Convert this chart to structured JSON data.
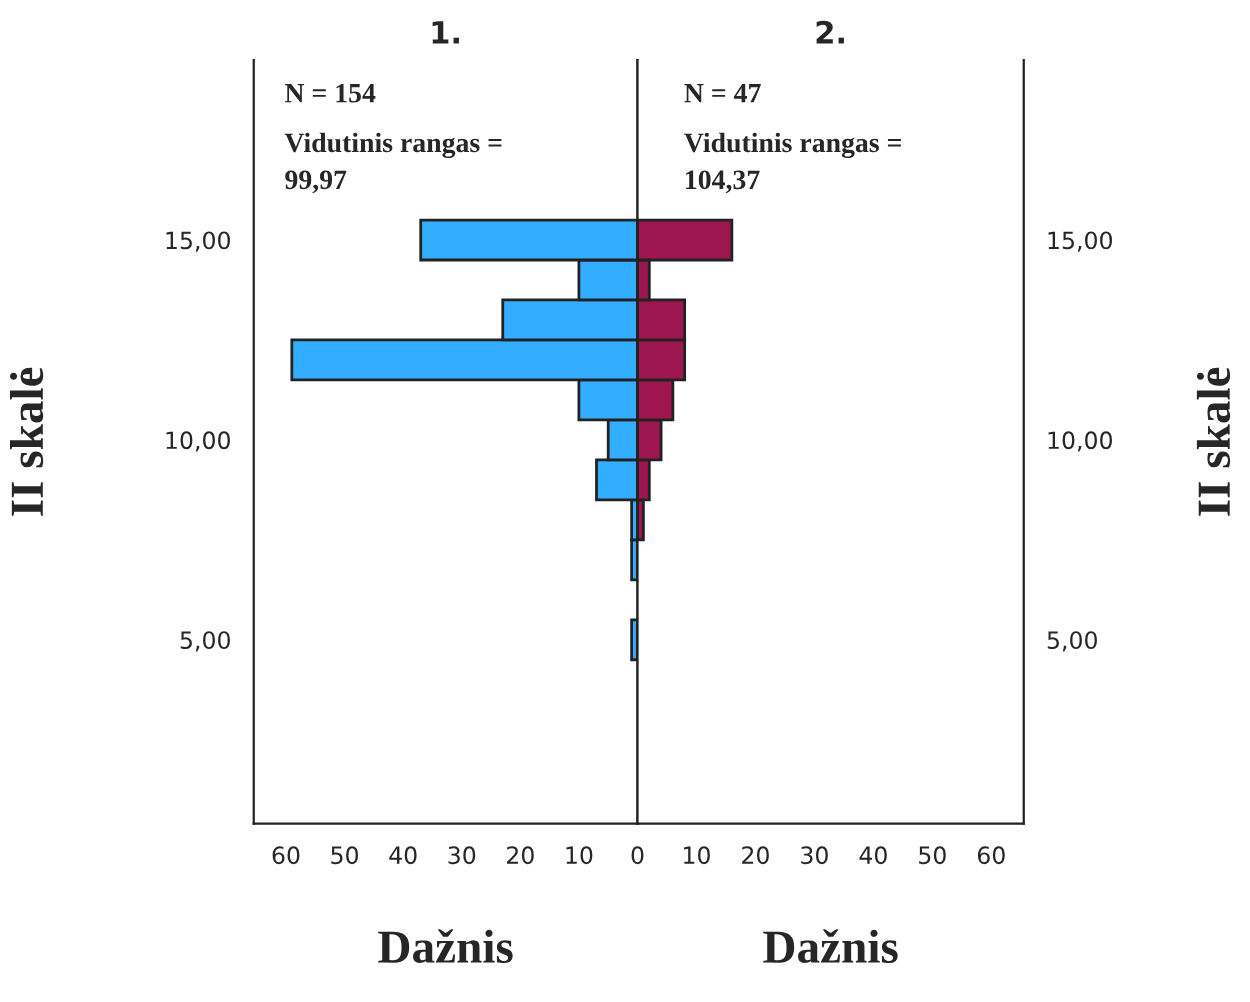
{
  "chart_data": [
    {
      "type": "histogram",
      "orientation": "horizontal",
      "title": "1.",
      "xlabel": "Dažnis",
      "ylabel": "II skalė",
      "color": "#33adff",
      "bins": [
        4.5,
        5.5,
        6.5,
        7.5,
        8.5,
        9.5,
        10.5,
        11.5,
        12.5,
        13.5,
        14.5,
        15.5
      ],
      "values": [
        1,
        0,
        1,
        1,
        7,
        5,
        10,
        59,
        23,
        10,
        37
      ],
      "xlim": [
        65.5,
        0
      ],
      "xticks": [
        60,
        50,
        40,
        30,
        20,
        10,
        0
      ],
      "ylim": [
        0.4,
        19.5
      ],
      "yticks": [
        {
          "value": 5,
          "label": "5,00"
        },
        {
          "value": 10,
          "label": "10,00"
        },
        {
          "value": 15,
          "label": "15,00"
        }
      ],
      "annotations": [
        "N = 154",
        "Vidutinis rangas = 99,97"
      ],
      "grid": false,
      "legend": false
    },
    {
      "type": "histogram",
      "orientation": "horizontal",
      "title": "2.",
      "xlabel": "Dažnis",
      "ylabel": "II skalė",
      "color": "#9e1650",
      "bins": [
        4.5,
        5.5,
        6.5,
        7.5,
        8.5,
        9.5,
        10.5,
        11.5,
        12.5,
        13.5,
        14.5,
        15.5
      ],
      "values": [
        0,
        0,
        0,
        1,
        2,
        4,
        6,
        8,
        8,
        2,
        16
      ],
      "xlim": [
        0,
        65.5
      ],
      "xticks": [
        10,
        20,
        30,
        40,
        50,
        60
      ],
      "ylim": [
        0.4,
        19.5
      ],
      "yticks": [
        {
          "value": 5,
          "label": "5,00"
        },
        {
          "value": 10,
          "label": "10,00"
        },
        {
          "value": 15,
          "label": "15,00"
        }
      ],
      "annotations": [
        "N = 47",
        "Vidutinis rangas = 104,37"
      ],
      "grid": false,
      "legend": false
    }
  ]
}
